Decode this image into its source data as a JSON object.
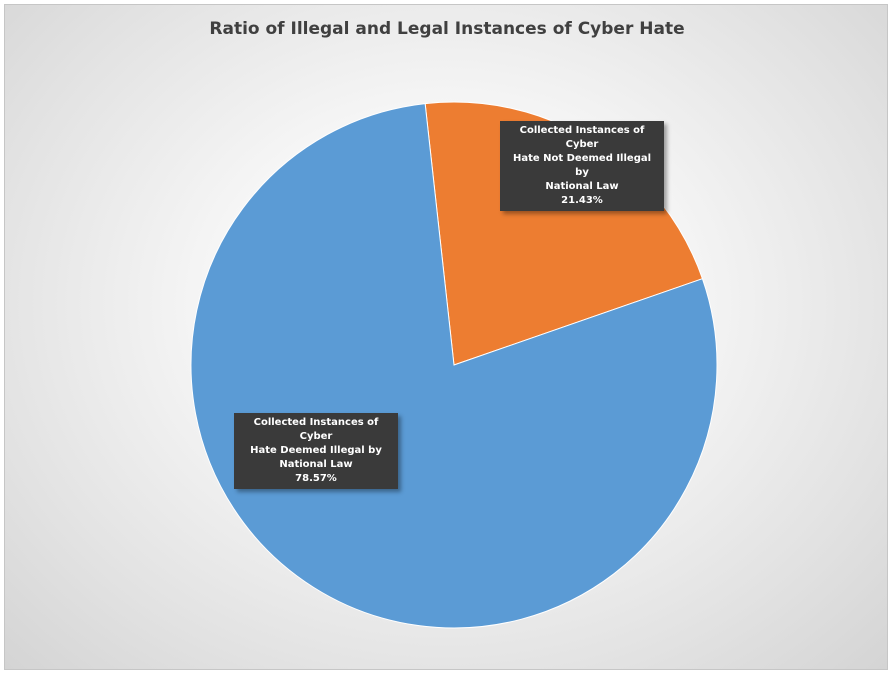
{
  "chart_data": {
    "type": "pie",
    "title": "Ratio of Illegal and Legal Instances of Cyber Hate",
    "slices": [
      {
        "label": "Collected Instances of Cyber Hate Not Deemed Illegal by National Law",
        "label_lines": [
          "Collected Instances of Cyber",
          "Hate Not Deemed Illegal by",
          "National Law"
        ],
        "value": 21.43,
        "value_text": "21.43%",
        "color": "#ED7D31"
      },
      {
        "label": "Collected Instances of Cyber Hate Deemed Illegal by National Law",
        "label_lines": [
          "Collected Instances of Cyber",
          "Hate Deemed Illegal by",
          "National Law"
        ],
        "value": 78.57,
        "value_text": "78.57%",
        "color": "#5B9BD5"
      }
    ],
    "legend": "none",
    "data_label_style": "dark callout boxes"
  }
}
